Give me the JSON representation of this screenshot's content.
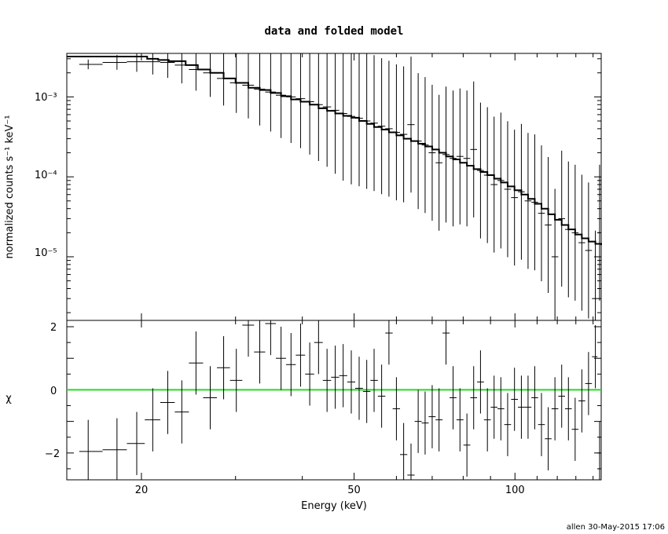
{
  "chart_data": [
    {
      "type": "scatter",
      "title": "data and folded model",
      "xlabel": "",
      "ylabel": "normalized counts s⁻¹ keV⁻¹",
      "xscale": "log",
      "yscale": "log",
      "xlim": [
        14.5,
        145
      ],
      "ylim": [
        1.6e-06,
        0.0035
      ],
      "ytick_labels": [
        "10⁻³",
        "10⁻⁴",
        "10⁻⁵"
      ],
      "series": [
        {
          "kind": "data-points",
          "points": [
            {
              "x": 15.9,
              "y": 0.00255
            },
            {
              "x": 18.0,
              "y": 0.0027
            },
            {
              "x": 19.6,
              "y": 0.00275
            },
            {
              "x": 21.0,
              "y": 0.00275
            },
            {
              "x": 22.4,
              "y": 0.0027
            },
            {
              "x": 23.8,
              "y": 0.0025
            },
            {
              "x": 25.3,
              "y": 0.0022
            },
            {
              "x": 26.9,
              "y": 0.002
            },
            {
              "x": 28.5,
              "y": 0.0017
            },
            {
              "x": 30.1,
              "y": 0.0015
            },
            {
              "x": 31.7,
              "y": 0.0014
            },
            {
              "x": 33.3,
              "y": 0.00125
            },
            {
              "x": 34.9,
              "y": 0.00115
            },
            {
              "x": 36.5,
              "y": 0.00105
            },
            {
              "x": 38.1,
              "y": 0.001
            },
            {
              "x": 39.7,
              "y": 0.00095
            },
            {
              "x": 41.3,
              "y": 0.00087
            },
            {
              "x": 42.9,
              "y": 0.0008
            },
            {
              "x": 44.5,
              "y": 0.00075
            },
            {
              "x": 46.1,
              "y": 0.00068
            },
            {
              "x": 47.7,
              "y": 0.00062
            },
            {
              "x": 49.4,
              "y": 0.00057
            },
            {
              "x": 51.1,
              "y": 0.00054
            },
            {
              "x": 52.8,
              "y": 0.0005
            },
            {
              "x": 54.5,
              "y": 0.00047
            },
            {
              "x": 56.3,
              "y": 0.00043
            },
            {
              "x": 58.1,
              "y": 0.0004
            },
            {
              "x": 60.0,
              "y": 0.00036
            },
            {
              "x": 61.9,
              "y": 0.00034
            },
            {
              "x": 63.9,
              "y": 0.00045
            },
            {
              "x": 65.9,
              "y": 0.00028
            },
            {
              "x": 67.9,
              "y": 0.00025
            },
            {
              "x": 70.0,
              "y": 0.0002
            },
            {
              "x": 72.1,
              "y": 0.00015
            },
            {
              "x": 74.3,
              "y": 0.00019
            },
            {
              "x": 76.6,
              "y": 0.00017
            },
            {
              "x": 78.9,
              "y": 0.00018
            },
            {
              "x": 81.3,
              "y": 0.00017
            },
            {
              "x": 83.7,
              "y": 0.00022
            },
            {
              "x": 86.2,
              "y": 0.00012
            },
            {
              "x": 88.8,
              "y": 0.000105
            },
            {
              "x": 91.4,
              "y": 8e-05
            },
            {
              "x": 94.1,
              "y": 9e-05
            },
            {
              "x": 96.9,
              "y": 7e-05
            },
            {
              "x": 99.8,
              "y": 5.5e-05
            },
            {
              "x": 102.8,
              "y": 6.5e-05
            },
            {
              "x": 105.8,
              "y": 5e-05
            },
            {
              "x": 108.9,
              "y": 4.8e-05
            },
            {
              "x": 112.1,
              "y": 3.5e-05
            },
            {
              "x": 115.4,
              "y": 2.5e-05
            },
            {
              "x": 118.8,
              "y": 1e-05
            },
            {
              "x": 122.3,
              "y": 3e-05
            },
            {
              "x": 125.9,
              "y": 2.2e-05
            },
            {
              "x": 129.6,
              "y": 2e-05
            },
            {
              "x": 133.4,
              "y": 1.5e-05
            },
            {
              "x": 137.3,
              "y": 1.2e-05
            },
            {
              "x": 141.4,
              "y": 3e-06
            },
            {
              "x": 144.0,
              "y": 2e-05
            }
          ]
        },
        {
          "kind": "model-step",
          "points": [
            {
              "x": 14.5,
              "y": 0.0032
            },
            {
              "x": 19.0,
              "y": 0.0032
            },
            {
              "x": 20.5,
              "y": 0.003
            },
            {
              "x": 21.5,
              "y": 0.0029
            },
            {
              "x": 22.5,
              "y": 0.0028
            },
            {
              "x": 24.2,
              "y": 0.0025
            },
            {
              "x": 25.5,
              "y": 0.0022
            },
            {
              "x": 26.9,
              "y": 0.002
            },
            {
              "x": 28.5,
              "y": 0.0017
            },
            {
              "x": 30.0,
              "y": 0.0015
            },
            {
              "x": 31.7,
              "y": 0.0013
            },
            {
              "x": 33.3,
              "y": 0.00122
            },
            {
              "x": 34.9,
              "y": 0.00112
            },
            {
              "x": 36.5,
              "y": 0.00102
            },
            {
              "x": 38.1,
              "y": 0.00093
            },
            {
              "x": 39.7,
              "y": 0.00087
            },
            {
              "x": 41.3,
              "y": 0.0008
            },
            {
              "x": 42.9,
              "y": 0.00072
            },
            {
              "x": 44.5,
              "y": 0.00067
            },
            {
              "x": 46.1,
              "y": 0.00062
            },
            {
              "x": 47.7,
              "y": 0.00058
            },
            {
              "x": 49.4,
              "y": 0.00055
            },
            {
              "x": 51.1,
              "y": 0.0005
            },
            {
              "x": 52.8,
              "y": 0.00046
            },
            {
              "x": 54.5,
              "y": 0.00042
            },
            {
              "x": 56.3,
              "y": 0.00039
            },
            {
              "x": 58.1,
              "y": 0.00036
            },
            {
              "x": 60.0,
              "y": 0.00033
            },
            {
              "x": 61.9,
              "y": 0.0003
            },
            {
              "x": 63.9,
              "y": 0.00028
            },
            {
              "x": 65.9,
              "y": 0.00026
            },
            {
              "x": 67.9,
              "y": 0.00024
            },
            {
              "x": 70.0,
              "y": 0.00022
            },
            {
              "x": 72.1,
              "y": 0.0002
            },
            {
              "x": 74.3,
              "y": 0.00018
            },
            {
              "x": 76.6,
              "y": 0.000165
            },
            {
              "x": 78.9,
              "y": 0.00015
            },
            {
              "x": 81.3,
              "y": 0.000138
            },
            {
              "x": 83.7,
              "y": 0.000125
            },
            {
              "x": 86.2,
              "y": 0.000115
            },
            {
              "x": 88.8,
              "y": 0.000105
            },
            {
              "x": 91.4,
              "y": 9.5e-05
            },
            {
              "x": 94.1,
              "y": 8.5e-05
            },
            {
              "x": 96.9,
              "y": 7.6e-05
            },
            {
              "x": 99.8,
              "y": 6.8e-05
            },
            {
              "x": 102.8,
              "y": 6e-05
            },
            {
              "x": 105.8,
              "y": 5.3e-05
            },
            {
              "x": 108.9,
              "y": 4.6e-05
            },
            {
              "x": 112.1,
              "y": 4e-05
            },
            {
              "x": 115.4,
              "y": 3.4e-05
            },
            {
              "x": 118.8,
              "y": 2.9e-05
            },
            {
              "x": 122.3,
              "y": 2.5e-05
            },
            {
              "x": 125.9,
              "y": 2.2e-05
            },
            {
              "x": 129.6,
              "y": 1.9e-05
            },
            {
              "x": 133.4,
              "y": 1.7e-05
            },
            {
              "x": 137.3,
              "y": 1.55e-05
            },
            {
              "x": 141.4,
              "y": 1.45e-05
            },
            {
              "x": 145.0,
              "y": 1.4e-05
            }
          ]
        }
      ]
    },
    {
      "type": "scatter",
      "title": "",
      "xlabel": "Energy (keV)",
      "ylabel": "χ",
      "xscale": "log",
      "xlim": [
        14.5,
        145
      ],
      "ylim": [
        -2.85,
        2.2
      ],
      "xticks": [
        20,
        50,
        100
      ],
      "yticks": [
        2,
        0,
        -2
      ],
      "reference_line": {
        "y": 0,
        "color": "#22dd22"
      },
      "points": [
        {
          "x": 15.9,
          "y": -1.95
        },
        {
          "x": 18.0,
          "y": -1.9
        },
        {
          "x": 19.6,
          "y": -1.7
        },
        {
          "x": 21.0,
          "y": -0.95
        },
        {
          "x": 22.4,
          "y": -0.4
        },
        {
          "x": 23.8,
          "y": -0.7
        },
        {
          "x": 25.3,
          "y": 0.85
        },
        {
          "x": 26.9,
          "y": -0.25
        },
        {
          "x": 28.5,
          "y": 0.7
        },
        {
          "x": 30.1,
          "y": 0.3
        },
        {
          "x": 31.7,
          "y": 2.05
        },
        {
          "x": 33.3,
          "y": 1.2
        },
        {
          "x": 34.9,
          "y": 2.1
        },
        {
          "x": 36.5,
          "y": 1.0
        },
        {
          "x": 38.1,
          "y": 0.8
        },
        {
          "x": 39.7,
          "y": 1.1
        },
        {
          "x": 41.3,
          "y": 0.5
        },
        {
          "x": 42.9,
          "y": 1.5
        },
        {
          "x": 44.5,
          "y": 0.3
        },
        {
          "x": 46.1,
          "y": 0.4
        },
        {
          "x": 47.7,
          "y": 0.45
        },
        {
          "x": 49.4,
          "y": 0.25
        },
        {
          "x": 51.1,
          "y": 0.05
        },
        {
          "x": 52.8,
          "y": -0.05
        },
        {
          "x": 54.5,
          "y": 0.3
        },
        {
          "x": 56.3,
          "y": -0.2
        },
        {
          "x": 58.1,
          "y": 1.8
        },
        {
          "x": 60.0,
          "y": -0.6
        },
        {
          "x": 61.9,
          "y": -2.05
        },
        {
          "x": 63.9,
          "y": -2.7
        },
        {
          "x": 65.9,
          "y": -1.0
        },
        {
          "x": 67.9,
          "y": -1.05
        },
        {
          "x": 70.0,
          "y": -0.85
        },
        {
          "x": 72.1,
          "y": -0.95
        },
        {
          "x": 74.3,
          "y": 1.8
        },
        {
          "x": 76.6,
          "y": -0.25
        },
        {
          "x": 78.9,
          "y": -0.95
        },
        {
          "x": 81.3,
          "y": -1.75
        },
        {
          "x": 83.7,
          "y": -0.25
        },
        {
          "x": 86.2,
          "y": 0.25
        },
        {
          "x": 88.8,
          "y": -0.95
        },
        {
          "x": 91.4,
          "y": -0.55
        },
        {
          "x": 94.1,
          "y": -0.6
        },
        {
          "x": 96.9,
          "y": -1.1
        },
        {
          "x": 99.8,
          "y": -0.3
        },
        {
          "x": 102.8,
          "y": -0.55
        },
        {
          "x": 105.8,
          "y": -0.55
        },
        {
          "x": 108.9,
          "y": -0.25
        },
        {
          "x": 112.1,
          "y": -1.1
        },
        {
          "x": 115.4,
          "y": -1.55
        },
        {
          "x": 118.8,
          "y": -0.6
        },
        {
          "x": 122.3,
          "y": -0.2
        },
        {
          "x": 125.9,
          "y": -0.6
        },
        {
          "x": 129.6,
          "y": -1.25
        },
        {
          "x": 133.4,
          "y": -0.35
        },
        {
          "x": 137.3,
          "y": 0.2
        },
        {
          "x": 141.4,
          "y": 1.05
        },
        {
          "x": 144.0,
          "y": -2.0
        }
      ]
    }
  ],
  "footer": "allen 30-May-2015 17:06"
}
